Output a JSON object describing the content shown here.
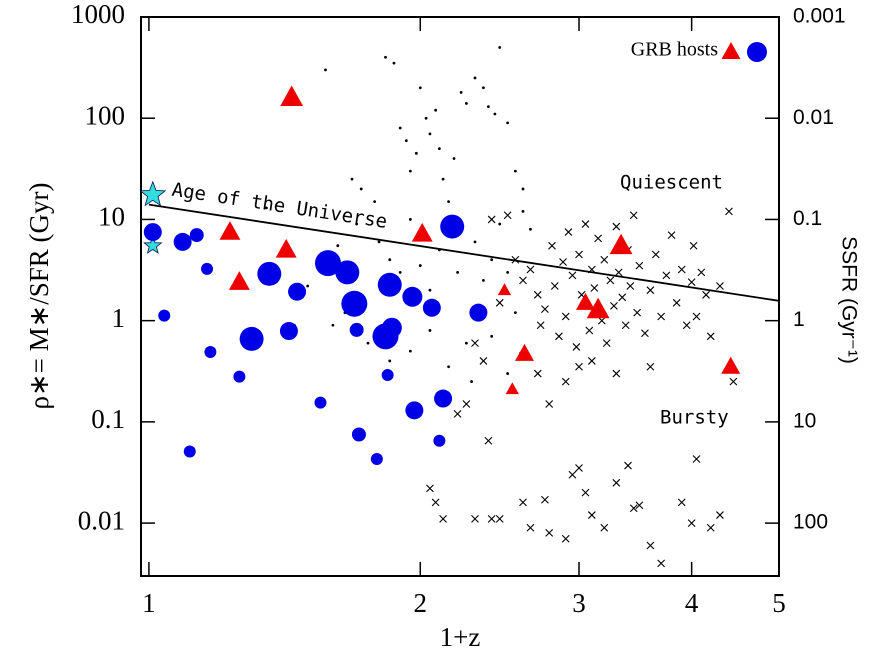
{
  "chart_data": {
    "type": "scatter",
    "x_label": "1+z",
    "y_label": "ρ∗= M∗/SFR (Gyr)",
    "y2_label": "SSFR (Gyr⁻¹)",
    "legend": {
      "label": "GRB hosts",
      "corner": "upper right"
    },
    "annotations": [
      "Age of the Universe",
      "Quiescent",
      "Bursty"
    ],
    "xlog": true,
    "ylog": true,
    "xlim": [
      0.98,
      5
    ],
    "xticks": [
      1,
      2,
      3,
      4,
      5
    ],
    "ylim": [
      0.003,
      1000
    ],
    "yticks": [
      0.01,
      0.1,
      1,
      10,
      100,
      1000
    ],
    "y2lim": [
      333,
      0.001
    ],
    "y2ticks": [
      100,
      10,
      1,
      0.1,
      0.01,
      0.001
    ],
    "lines": [
      {
        "color": "#000000",
        "x": [
          1,
          5
        ],
        "values": [
          14,
          1.57
        ]
      }
    ],
    "series": [
      {
        "marker": "dot",
        "color": "#000000",
        "x": [
          1.57,
          1.68,
          1.72,
          1.83,
          1.87,
          1.9,
          1.93,
          1.95,
          1.98,
          2.0,
          2.03,
          2.05,
          2.08,
          2.1,
          2.12,
          2.15,
          2.18,
          2.22,
          2.25,
          2.3,
          2.35,
          2.38,
          2.42,
          2.45,
          2.5,
          2.55,
          2.6,
          1.78,
          1.8,
          1.85,
          1.9,
          1.95,
          2.0,
          2.05,
          2.1,
          2.2,
          2.3,
          2.35,
          2.4,
          2.45,
          2.5,
          2.55,
          1.6,
          1.65,
          1.75,
          1.85,
          1.95,
          2.05,
          2.15,
          2.25,
          2.4,
          2.5,
          1.45,
          1.5,
          1.62,
          1.7,
          2.6,
          2.65,
          1.35,
          2.28
        ],
        "values": [
          300,
          25,
          20,
          400,
          350,
          80,
          60,
          30,
          45,
          200,
          100,
          70,
          120,
          50,
          25,
          15,
          40,
          180,
          140,
          250,
          200,
          130,
          110,
          500,
          90,
          30,
          12,
          15,
          6,
          4,
          3,
          10,
          3.5,
          2,
          5,
          3,
          6,
          2.5,
          4,
          9,
          3,
          1.2,
          0.9,
          1.2,
          0.6,
          0.4,
          0.5,
          0.8,
          0.35,
          0.6,
          0.7,
          0.3,
          0.9,
          2.2,
          5.5,
          9,
          20,
          8,
          13,
          0.25
        ]
      },
      {
        "marker": "cross",
        "color": "#000000",
        "x": [
          2.4,
          2.5,
          2.55,
          2.6,
          2.65,
          2.7,
          2.72,
          2.75,
          2.8,
          2.82,
          2.85,
          2.88,
          2.9,
          2.92,
          2.95,
          2.98,
          3.0,
          3.02,
          3.05,
          3.08,
          3.1,
          3.12,
          3.15,
          3.18,
          3.2,
          3.22,
          3.25,
          3.28,
          3.3,
          3.32,
          3.35,
          3.38,
          3.4,
          3.42,
          3.45,
          3.48,
          3.5,
          3.55,
          3.6,
          3.65,
          3.7,
          3.75,
          3.8,
          3.85,
          3.9,
          3.95,
          4.0,
          4.02,
          4.05,
          4.1,
          4.15,
          4.2,
          4.3,
          4.4,
          4.45,
          2.3,
          2.35,
          2.45,
          2.6,
          2.7,
          2.78,
          2.9,
          3.0,
          3.1,
          3.3,
          3.6,
          2.25,
          2.38,
          2.2,
          2.05,
          2.08,
          2.12,
          2.3,
          2.4,
          2.45,
          2.6,
          2.65,
          2.75,
          2.78,
          2.9,
          3.0,
          3.05,
          3.1,
          3.2,
          3.3,
          3.4,
          3.5,
          3.6,
          3.7,
          3.9,
          4.0,
          4.05,
          4.2,
          4.3,
          3.45,
          2.95
        ],
        "values": [
          10,
          11,
          4,
          2.5,
          3.2,
          1.8,
          0.9,
          1.3,
          5.5,
          2.2,
          0.7,
          3.8,
          1.1,
          7.5,
          2.8,
          0.55,
          4.5,
          1.8,
          9,
          0.8,
          3.2,
          2.1,
          6.5,
          1.0,
          4.0,
          0.6,
          2.5,
          1.4,
          8.5,
          3.0,
          1.7,
          0.9,
          5.0,
          2.2,
          11,
          1.2,
          3.5,
          0.75,
          2.0,
          4.5,
          1.1,
          2.8,
          7.0,
          1.5,
          3.2,
          0.9,
          2.4,
          5.5,
          1.1,
          3.0,
          1.8,
          0.7,
          2.2,
          12,
          0.25,
          0.6,
          0.4,
          1.5,
          0.45,
          0.3,
          0.15,
          0.25,
          0.35,
          0.4,
          0.3,
          0.35,
          0.15,
          0.065,
          0.12,
          0.022,
          0.016,
          0.011,
          0.011,
          0.011,
          0.011,
          0.016,
          0.009,
          0.017,
          0.008,
          0.007,
          0.035,
          0.02,
          0.012,
          0.009,
          0.025,
          0.037,
          0.015,
          0.006,
          0.004,
          0.016,
          0.01,
          0.043,
          0.009,
          0.012,
          0.014,
          0.03
        ]
      },
      {
        "marker": "star",
        "color": "#33dddd",
        "x": [
          1.01,
          1.01
        ],
        "values": [
          17.5,
          5.5
        ],
        "sizes": [
          13,
          9
        ]
      },
      {
        "marker": "circle",
        "color": "#0000e6",
        "x": [
          1.01,
          1.04,
          1.09,
          1.13,
          1.16,
          1.17,
          1.26,
          1.11,
          1.3,
          1.36,
          1.43,
          1.46,
          1.58,
          1.66,
          1.69,
          1.7,
          1.83,
          1.86,
          1.85,
          1.84,
          1.71,
          1.79,
          1.55,
          1.96,
          2.06,
          1.97,
          2.12,
          2.1,
          2.17,
          2.32
        ],
        "values": [
          7.5,
          1.12,
          6.0,
          7.0,
          3.25,
          0.49,
          0.28,
          0.051,
          0.66,
          2.9,
          0.79,
          1.93,
          3.7,
          3.0,
          1.47,
          0.81,
          0.7,
          0.85,
          2.26,
          0.29,
          0.075,
          0.043,
          0.155,
          1.72,
          1.34,
          0.13,
          0.17,
          0.065,
          8.5,
          1.2
        ],
        "sizes": [
          9,
          6,
          9,
          7,
          6,
          6,
          6,
          6,
          12,
          12,
          9,
          9,
          13,
          12,
          13,
          7,
          13,
          10,
          12,
          6,
          7,
          6,
          6,
          10,
          9,
          9,
          9,
          6,
          12,
          9
        ]
      },
      {
        "marker": "triangle",
        "color": "#ee0000",
        "x": [
          1.44,
          1.23,
          1.26,
          1.42,
          2.01,
          2.48,
          2.53,
          2.61,
          3.05,
          3.15,
          3.34,
          4.42
        ],
        "values": [
          160,
          7.5,
          2.4,
          5.0,
          7.2,
          2.0,
          0.21,
          0.47,
          1.5,
          1.28,
          5.5,
          0.35
        ],
        "sizes": [
          12,
          11,
          11,
          11,
          11,
          7,
          7,
          10,
          10,
          12,
          12,
          10
        ]
      }
    ]
  }
}
